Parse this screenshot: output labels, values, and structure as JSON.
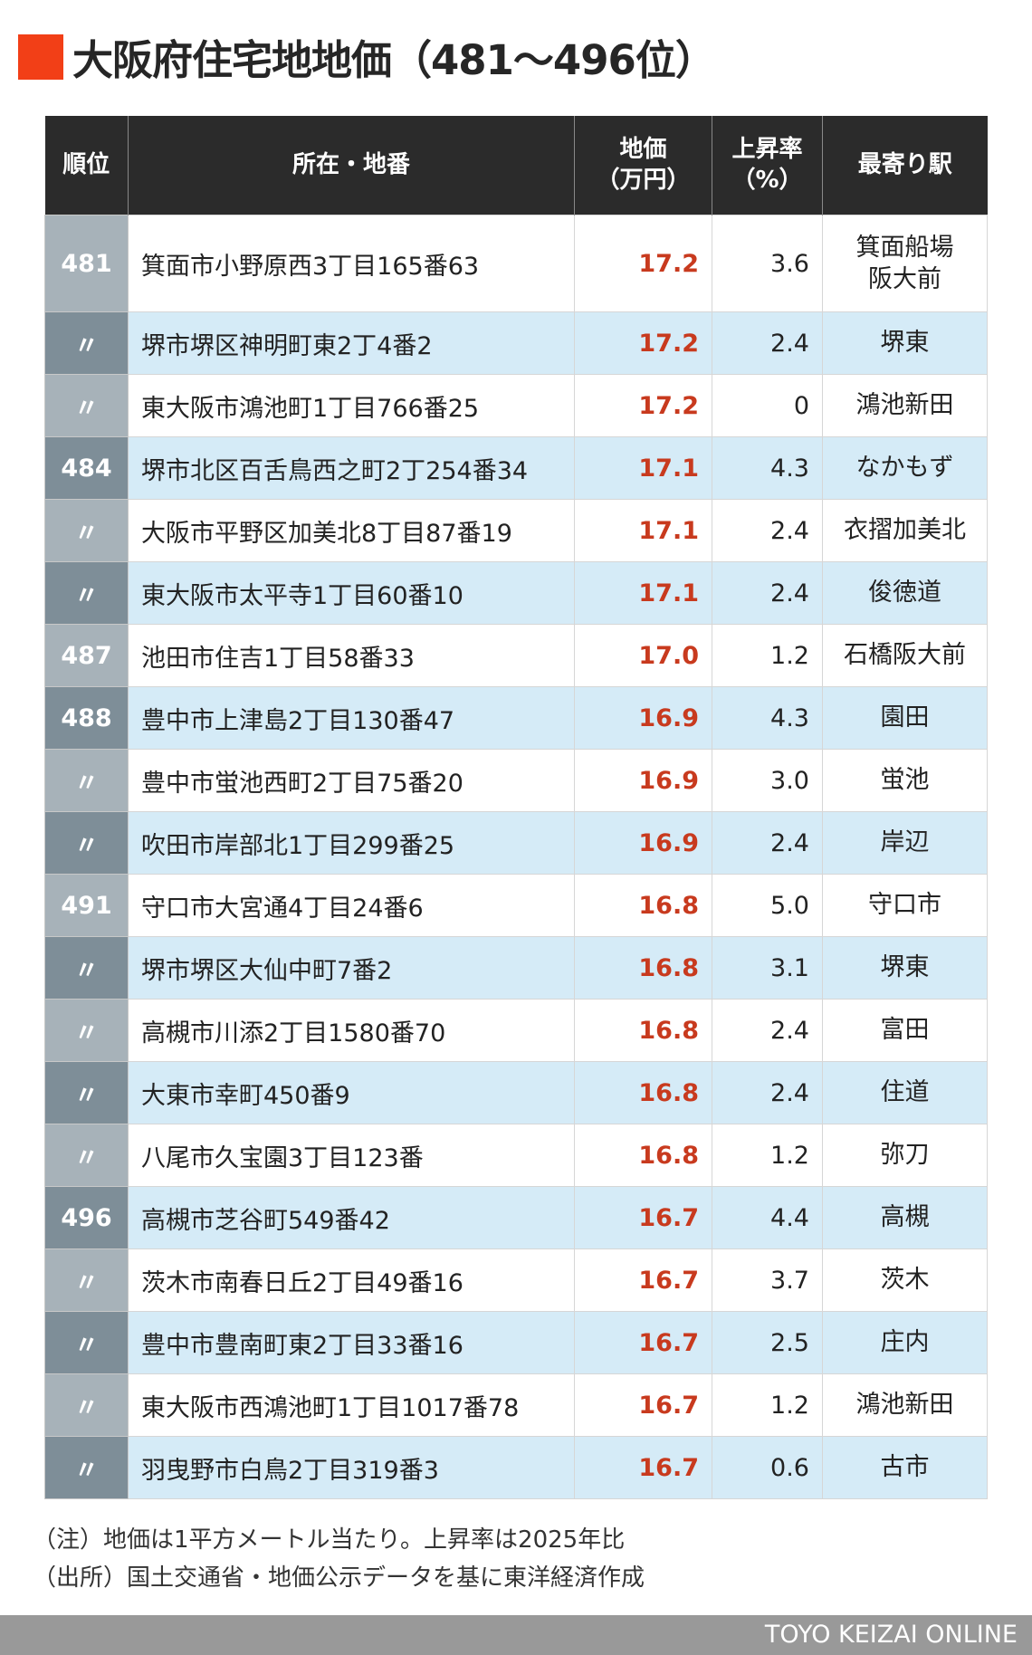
{
  "title": "大阪府住宅地地価（481〜496位）",
  "accent_color": "#f23f17",
  "headers": {
    "rank": "順位",
    "address": "所在・地番",
    "price": "地価\n（万円）",
    "rate": "上昇率\n（%）",
    "station": "最寄り駅"
  },
  "rows": [
    {
      "rank": "481",
      "address": "箕面市小野原西3丁目165番63",
      "price": "17.2",
      "rate": "3.6",
      "station": "箕面船場\n阪大前"
    },
    {
      "rank": "〃",
      "address": "堺市堺区神明町東2丁4番2",
      "price": "17.2",
      "rate": "2.4",
      "station": "堺東"
    },
    {
      "rank": "〃",
      "address": "東大阪市鴻池町1丁目766番25",
      "price": "17.2",
      "rate": "0",
      "station": "鴻池新田"
    },
    {
      "rank": "484",
      "address": "堺市北区百舌鳥西之町2丁254番34",
      "price": "17.1",
      "rate": "4.3",
      "station": "なかもず"
    },
    {
      "rank": "〃",
      "address": "大阪市平野区加美北8丁目87番19",
      "price": "17.1",
      "rate": "2.4",
      "station": "衣摺加美北"
    },
    {
      "rank": "〃",
      "address": "東大阪市太平寺1丁目60番10",
      "price": "17.1",
      "rate": "2.4",
      "station": "俊徳道"
    },
    {
      "rank": "487",
      "address": "池田市住吉1丁目58番33",
      "price": "17.0",
      "rate": "1.2",
      "station": "石橋阪大前"
    },
    {
      "rank": "488",
      "address": "豊中市上津島2丁目130番47",
      "price": "16.9",
      "rate": "4.3",
      "station": "園田"
    },
    {
      "rank": "〃",
      "address": "豊中市蛍池西町2丁目75番20",
      "price": "16.9",
      "rate": "3.0",
      "station": "蛍池"
    },
    {
      "rank": "〃",
      "address": "吹田市岸部北1丁目299番25",
      "price": "16.9",
      "rate": "2.4",
      "station": "岸辺"
    },
    {
      "rank": "491",
      "address": "守口市大宮通4丁目24番6",
      "price": "16.8",
      "rate": "5.0",
      "station": "守口市"
    },
    {
      "rank": "〃",
      "address": "堺市堺区大仙中町7番2",
      "price": "16.8",
      "rate": "3.1",
      "station": "堺東"
    },
    {
      "rank": "〃",
      "address": "高槻市川添2丁目1580番70",
      "price": "16.8",
      "rate": "2.4",
      "station": "富田"
    },
    {
      "rank": "〃",
      "address": "大東市幸町450番9",
      "price": "16.8",
      "rate": "2.4",
      "station": "住道"
    },
    {
      "rank": "〃",
      "address": "八尾市久宝園3丁目123番",
      "price": "16.8",
      "rate": "1.2",
      "station": "弥刀"
    },
    {
      "rank": "496",
      "address": "高槻市芝谷町549番42",
      "price": "16.7",
      "rate": "4.4",
      "station": "高槻"
    },
    {
      "rank": "〃",
      "address": "茨木市南春日丘2丁目49番16",
      "price": "16.7",
      "rate": "3.7",
      "station": "茨木"
    },
    {
      "rank": "〃",
      "address": "豊中市豊南町東2丁目33番16",
      "price": "16.7",
      "rate": "2.5",
      "station": "庄内"
    },
    {
      "rank": "〃",
      "address": "東大阪市西鴻池町1丁目1017番78",
      "price": "16.7",
      "rate": "1.2",
      "station": "鴻池新田"
    },
    {
      "rank": "〃",
      "address": "羽曳野市白鳥2丁目319番3",
      "price": "16.7",
      "rate": "0.6",
      "station": "古市"
    }
  ],
  "notes": [
    "（注）地価は1平方メートル当たり。上昇率は2025年比",
    "（出所）国土交通省・地価公示データを基に東洋経済作成"
  ],
  "footer": "TOYO KEIZAI ONLINE"
}
